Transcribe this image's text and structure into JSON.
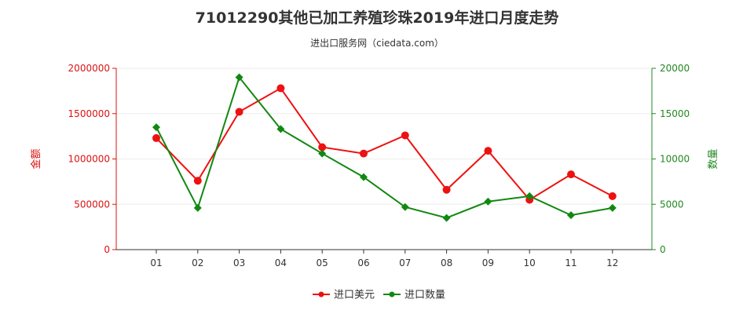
{
  "chart_data": {
    "type": "line",
    "title": "71012290其他已加工养殖珍珠2019年进口月度走势",
    "subtitle": "进出口服务网（ciedata.com）",
    "categories": [
      "01",
      "02",
      "03",
      "04",
      "05",
      "06",
      "07",
      "08",
      "09",
      "10",
      "11",
      "12"
    ],
    "left_axis": {
      "label": "金额",
      "ticks": [
        "0",
        "500000",
        "1000000",
        "1500000",
        "2000000"
      ],
      "range": [
        0,
        2000000
      ],
      "color": "#dd1111"
    },
    "right_axis": {
      "label": "数量",
      "ticks": [
        "0",
        "5000",
        "10000",
        "15000",
        "20000"
      ],
      "range": [
        0,
        20000
      ],
      "color": "#228822"
    },
    "series": [
      {
        "name": "进口美元",
        "axis": "left",
        "color": "#ee1111",
        "values": [
          1230000,
          760000,
          1520000,
          1780000,
          1130000,
          1060000,
          1260000,
          660000,
          1090000,
          550000,
          830000,
          590000
        ]
      },
      {
        "name": "进口数量",
        "axis": "right",
        "color": "#118811",
        "values": [
          13500,
          4600,
          19000,
          13300,
          10600,
          8000,
          4700,
          3500,
          5300,
          5900,
          3800,
          4600
        ]
      }
    ],
    "legend": "bottom-center"
  }
}
